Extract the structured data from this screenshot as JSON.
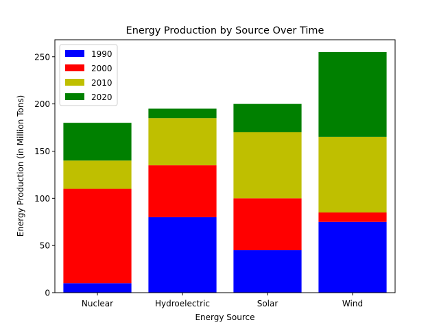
{
  "chart_data": {
    "type": "bar",
    "stacked": true,
    "title": "Energy Production by Source Over Time",
    "xlabel": "Energy Source",
    "ylabel": "Energy Production (in Million Tons)",
    "categories": [
      "Nuclear",
      "Hydroelectric",
      "Solar",
      "Wind"
    ],
    "series": [
      {
        "name": "1990",
        "color": "#0000ff",
        "values": [
          10,
          80,
          45,
          75
        ]
      },
      {
        "name": "2000",
        "color": "#ff0000",
        "values": [
          100,
          55,
          55,
          10
        ]
      },
      {
        "name": "2010",
        "color": "#bfbf00",
        "values": [
          30,
          50,
          70,
          80
        ]
      },
      {
        "name": "2020",
        "color": "#008000",
        "values": [
          40,
          10,
          30,
          90
        ]
      }
    ],
    "ylim": [
      0,
      268
    ],
    "yticks": [
      0,
      50,
      100,
      150,
      200,
      250
    ],
    "grid": false,
    "legend": "top-left"
  }
}
